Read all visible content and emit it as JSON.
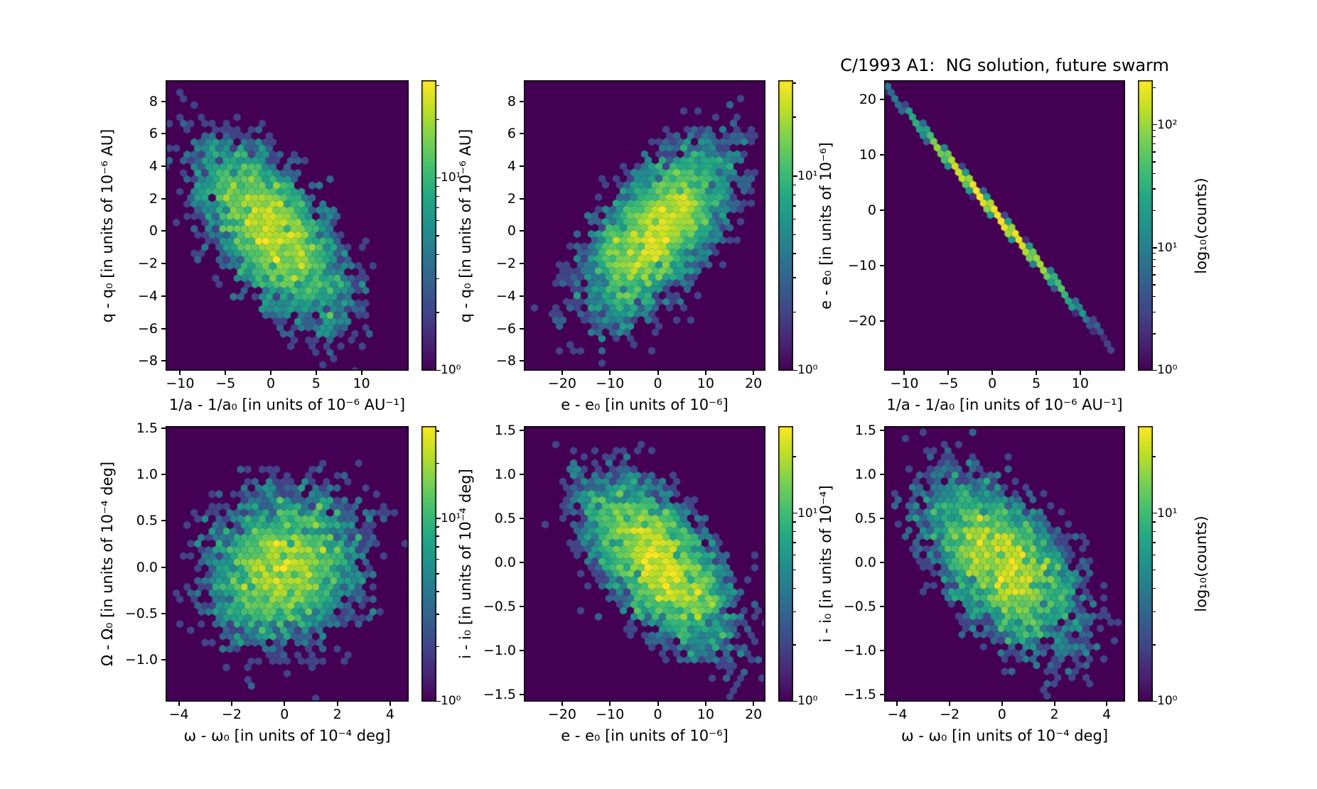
{
  "figure": {
    "title": "C/1993 A1:  NG solution, future swarm",
    "colorbar_label": "log₁₀(counts)",
    "background_color": "#ffffff",
    "hex_background_color": "#440154",
    "axis_color": "#000000",
    "colormap": "viridis",
    "colormap_stops": [
      "#440154",
      "#482475",
      "#414487",
      "#355f8d",
      "#2a788e",
      "#21918c",
      "#22a884",
      "#44bf70",
      "#7ad151",
      "#bddf26",
      "#fde725"
    ]
  },
  "chart_data": [
    {
      "id": "top-left",
      "type": "hexbin",
      "xlabel": "1/a - 1/a₀ [in units of 10⁻⁶ AU⁻¹]",
      "ylabel": "q - q₀ [in units of 10⁻⁶ AU]",
      "xlim": [
        -11.6,
        15.2
      ],
      "ylim": [
        -8.6,
        9.3
      ],
      "xticks": [
        {
          "v": -10,
          "label": "−10"
        },
        {
          "v": -5,
          "label": "−5"
        },
        {
          "v": 0,
          "label": "0"
        },
        {
          "v": 5,
          "label": "5"
        },
        {
          "v": 10,
          "label": "10"
        }
      ],
      "yticks": [
        {
          "v": 8,
          "label": "8"
        },
        {
          "v": 6,
          "label": "6"
        },
        {
          "v": 4,
          "label": "4"
        },
        {
          "v": 2,
          "label": "2"
        },
        {
          "v": 0,
          "label": "0"
        },
        {
          "v": -2,
          "label": "−2"
        },
        {
          "v": -4,
          "label": "−4"
        },
        {
          "v": -6,
          "label": "−6"
        },
        {
          "v": -8,
          "label": "−8"
        }
      ],
      "colorbar_ticks": [
        {
          "v": 10,
          "label": "10¹"
        },
        {
          "v": 1,
          "label": "10⁰"
        }
      ],
      "color_scale": "log",
      "gridsize": 34,
      "distribution": {
        "type": "gaussian2d",
        "n": 5000,
        "mean": [
          0,
          0
        ],
        "sigma_x": 4.3,
        "sigma_y": 2.95,
        "corr": -0.62
      }
    },
    {
      "id": "top-middle",
      "type": "hexbin",
      "xlabel": "e - e₀ [in units of 10⁻⁶]",
      "ylabel": "q - q₀ [in units of 10⁻⁶ AU]",
      "xlim": [
        -28,
        22.5
      ],
      "ylim": [
        -8.6,
        9.3
      ],
      "xticks": [
        {
          "v": -20,
          "label": "−20"
        },
        {
          "v": -10,
          "label": "−10"
        },
        {
          "v": 0,
          "label": "0"
        },
        {
          "v": 10,
          "label": "10"
        },
        {
          "v": 20,
          "label": "20"
        }
      ],
      "yticks": [
        {
          "v": 8,
          "label": "8"
        },
        {
          "v": 6,
          "label": "6"
        },
        {
          "v": 4,
          "label": "4"
        },
        {
          "v": 2,
          "label": "2"
        },
        {
          "v": 0,
          "label": "0"
        },
        {
          "v": -2,
          "label": "−2"
        },
        {
          "v": -4,
          "label": "−4"
        },
        {
          "v": -6,
          "label": "−6"
        },
        {
          "v": -8,
          "label": "−8"
        }
      ],
      "colorbar_ticks": [
        {
          "v": 10,
          "label": "10¹"
        },
        {
          "v": 1,
          "label": "10⁰"
        }
      ],
      "color_scale": "log",
      "gridsize": 34,
      "distribution": {
        "type": "gaussian2d",
        "n": 5000,
        "mean": [
          0,
          0
        ],
        "sigma_x": 8.3,
        "sigma_y": 2.95,
        "corr": 0.62
      }
    },
    {
      "id": "top-right",
      "type": "hexbin",
      "xlabel": "1/a - 1/a₀ [in units of 10⁻⁶ AU⁻¹]",
      "ylabel": "e - e₀ [in units of 10⁻⁶]",
      "xlim": [
        -12.3,
        15.1
      ],
      "ylim": [
        -29,
        23.4
      ],
      "xticks": [
        {
          "v": -10,
          "label": "−10"
        },
        {
          "v": -5,
          "label": "−5"
        },
        {
          "v": 0,
          "label": "0"
        },
        {
          "v": 5,
          "label": "5"
        },
        {
          "v": 10,
          "label": "10"
        }
      ],
      "yticks": [
        {
          "v": 20,
          "label": "20"
        },
        {
          "v": 10,
          "label": "10"
        },
        {
          "v": 0,
          "label": "0"
        },
        {
          "v": -10,
          "label": "−10"
        },
        {
          "v": -20,
          "label": "−20"
        }
      ],
      "colorbar_ticks": [
        {
          "v": 100,
          "label": "10²"
        },
        {
          "v": 10,
          "label": "10¹"
        },
        {
          "v": 1,
          "label": "10⁰"
        }
      ],
      "color_scale": "log",
      "gridsize": 34,
      "distribution": {
        "type": "gaussian2d",
        "n": 5000,
        "mean": [
          0,
          0
        ],
        "sigma_x": 4.3,
        "sigma_y": 7.9,
        "corr": -0.9993
      }
    },
    {
      "id": "bottom-left",
      "type": "hexbin",
      "xlabel": "ω - ω₀ [in units of 10⁻⁴ deg]",
      "ylabel": "Ω - Ω₀ [in units of 10⁻⁴ deg]",
      "xlim": [
        -4.5,
        4.7
      ],
      "ylim": [
        -1.45,
        1.52
      ],
      "xticks": [
        {
          "v": -4,
          "label": "−4"
        },
        {
          "v": -2,
          "label": "−2"
        },
        {
          "v": 0,
          "label": "0"
        },
        {
          "v": 2,
          "label": "2"
        },
        {
          "v": 4,
          "label": "4"
        }
      ],
      "yticks": [
        {
          "v": 1.5,
          "label": "1.5"
        },
        {
          "v": 1.0,
          "label": "1.0"
        },
        {
          "v": 0.5,
          "label": "0.5"
        },
        {
          "v": 0.0,
          "label": "0.0"
        },
        {
          "v": -0.5,
          "label": "−0.5"
        },
        {
          "v": -1.0,
          "label": "−1.0"
        }
      ],
      "colorbar_ticks": [
        {
          "v": 10,
          "label": "10¹"
        },
        {
          "v": 1,
          "label": "10⁰"
        }
      ],
      "color_scale": "log",
      "gridsize": 34,
      "distribution": {
        "type": "gaussian2d",
        "n": 5000,
        "mean": [
          0,
          0
        ],
        "sigma_x": 1.55,
        "sigma_y": 0.44,
        "corr": 0.12
      }
    },
    {
      "id": "bottom-middle",
      "type": "hexbin",
      "xlabel": "e - e₀ [in units of 10⁻⁶]",
      "ylabel": "i - i₀ [in units of 10⁻⁴ deg]",
      "xlim": [
        -28,
        22.5
      ],
      "ylim": [
        -1.58,
        1.55
      ],
      "xticks": [
        {
          "v": -20,
          "label": "−20"
        },
        {
          "v": -10,
          "label": "−10"
        },
        {
          "v": 0,
          "label": "0"
        },
        {
          "v": 10,
          "label": "10"
        },
        {
          "v": 20,
          "label": "20"
        }
      ],
      "yticks": [
        {
          "v": 1.5,
          "label": "1.5"
        },
        {
          "v": 1.0,
          "label": "1.0"
        },
        {
          "v": 0.5,
          "label": "0.5"
        },
        {
          "v": 0.0,
          "label": "0.0"
        },
        {
          "v": -0.5,
          "label": "−0.5"
        },
        {
          "v": -1.0,
          "label": "−1.0"
        },
        {
          "v": -1.5,
          "label": "−1.5"
        }
      ],
      "colorbar_ticks": [
        {
          "v": 10,
          "label": "10¹"
        },
        {
          "v": 1,
          "label": "10⁰"
        }
      ],
      "color_scale": "log",
      "gridsize": 34,
      "distribution": {
        "type": "gaussian2d",
        "n": 5000,
        "mean": [
          0,
          0
        ],
        "sigma_x": 8.3,
        "sigma_y": 0.52,
        "corr": -0.6
      }
    },
    {
      "id": "bottom-right",
      "type": "hexbin",
      "xlabel": "ω - ω₀ [in units of 10⁻⁴ deg]",
      "ylabel": "i - i₀ [in units of 10⁻⁴]",
      "xlim": [
        -4.5,
        4.7
      ],
      "ylim": [
        -1.58,
        1.55
      ],
      "xticks": [
        {
          "v": -4,
          "label": "−4"
        },
        {
          "v": -2,
          "label": "−2"
        },
        {
          "v": 0,
          "label": "0"
        },
        {
          "v": 2,
          "label": "2"
        },
        {
          "v": 4,
          "label": "4"
        }
      ],
      "yticks": [
        {
          "v": 1.5,
          "label": "1.5"
        },
        {
          "v": 1.0,
          "label": "1.0"
        },
        {
          "v": 0.5,
          "label": "0.5"
        },
        {
          "v": 0.0,
          "label": "0.0"
        },
        {
          "v": -0.5,
          "label": "−0.5"
        },
        {
          "v": -1.0,
          "label": "−1.0"
        },
        {
          "v": -1.5,
          "label": "−1.5"
        }
      ],
      "colorbar_ticks": [
        {
          "v": 10,
          "label": "10¹"
        },
        {
          "v": 1,
          "label": "10⁰"
        }
      ],
      "color_scale": "log",
      "gridsize": 34,
      "distribution": {
        "type": "gaussian2d",
        "n": 5000,
        "mean": [
          0,
          0
        ],
        "sigma_x": 1.55,
        "sigma_y": 0.52,
        "corr": -0.52
      }
    }
  ]
}
